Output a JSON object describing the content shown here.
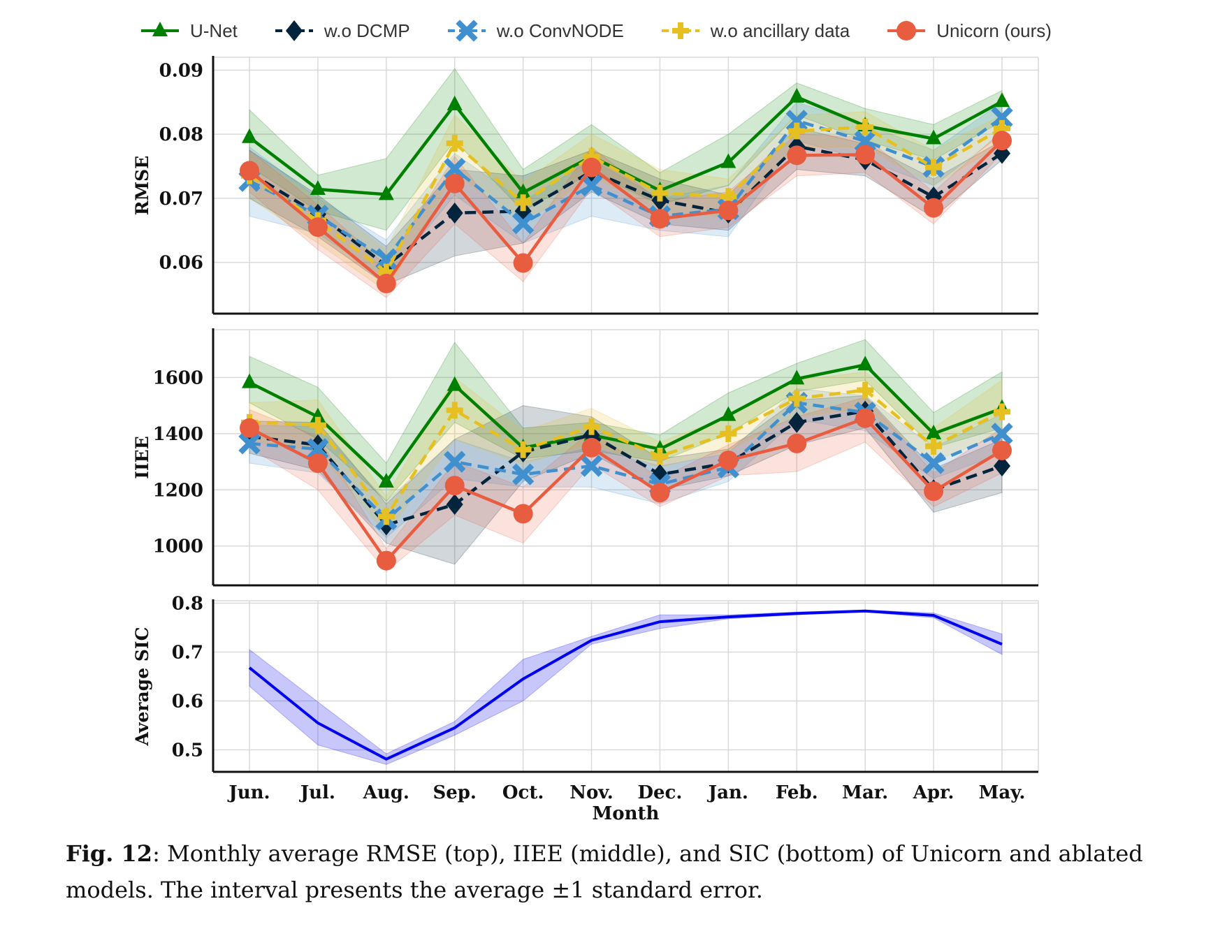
{
  "legend": [
    {
      "name": "U-Net",
      "color": "#008000",
      "marker": "triangle-up",
      "dash": "solid"
    },
    {
      "name": "w.o DCMP",
      "color": "#03243d",
      "marker": "diamond",
      "dash": "dashed"
    },
    {
      "name": "w.o ConvNODE",
      "color": "#4090d0",
      "marker": "x-filled",
      "dash": "dashed"
    },
    {
      "name": "w.o ancillary data",
      "color": "#e6bf20",
      "marker": "plus-filled",
      "dash": "dashed"
    },
    {
      "name": "Unicorn (ours)",
      "color": "#e85c40",
      "marker": "circle",
      "dash": "solid"
    }
  ],
  "caption": {
    "label": "Fig. 12",
    "text": ": Monthly average RMSE (top), IIEE (middle), and SIC (bottom) of Unicorn and ablated models. The interval presents the average ±1 standard error."
  },
  "chart_data": [
    {
      "type": "line",
      "title": "",
      "xlabel": "",
      "ylabel": "RMSE",
      "categories": [
        "Jun.",
        "Jul.",
        "Aug.",
        "Sep.",
        "Oct.",
        "Nov.",
        "Dec.",
        "Jan.",
        "Feb.",
        "Mar.",
        "Apr.",
        "May."
      ],
      "ylim": [
        0.052,
        0.092
      ],
      "yticks": [
        0.06,
        0.07,
        0.08,
        0.09
      ],
      "ytick_labels": [
        "0.06",
        "0.07",
        "0.08",
        "0.09"
      ],
      "grid": true,
      "series": [
        {
          "name": "U-Net",
          "values": [
            0.0795,
            0.0714,
            0.0706,
            0.0846,
            0.0709,
            0.0765,
            0.0712,
            0.0756,
            0.0858,
            0.0813,
            0.0793,
            0.0851
          ],
          "lower": [
            0.075,
            0.068,
            0.065,
            0.079,
            0.068,
            0.074,
            0.069,
            0.072,
            0.083,
            0.079,
            0.076,
            0.082
          ],
          "upper": [
            0.0838,
            0.0736,
            0.0762,
            0.0902,
            0.0745,
            0.0815,
            0.074,
            0.08,
            0.088,
            0.084,
            0.0815,
            0.0868
          ]
        },
        {
          "name": "w.o DCMP",
          "values": [
            0.074,
            0.0675,
            0.0595,
            0.0677,
            0.068,
            0.0742,
            0.0697,
            0.0677,
            0.0781,
            0.076,
            0.0702,
            0.077
          ],
          "lower": [
            0.07,
            0.064,
            0.0565,
            0.061,
            0.063,
            0.071,
            0.066,
            0.065,
            0.0745,
            0.0735,
            0.067,
            0.076
          ],
          "upper": [
            0.0775,
            0.0705,
            0.0625,
            0.0745,
            0.0735,
            0.0775,
            0.073,
            0.0705,
            0.081,
            0.0785,
            0.073,
            0.079
          ]
        },
        {
          "name": "w.o ConvNODE",
          "values": [
            0.0727,
            0.0673,
            0.0605,
            0.0746,
            0.0661,
            0.072,
            0.0672,
            0.0683,
            0.0821,
            0.0789,
            0.0749,
            0.0826
          ],
          "lower": [
            0.0672,
            0.0645,
            0.0575,
            0.0705,
            0.063,
            0.0672,
            0.065,
            0.064,
            0.079,
            0.076,
            0.072,
            0.08
          ],
          "upper": [
            0.078,
            0.07,
            0.0635,
            0.077,
            0.0695,
            0.076,
            0.07,
            0.072,
            0.085,
            0.0815,
            0.0775,
            0.085
          ]
        },
        {
          "name": "w.o ancillary data",
          "values": [
            0.0735,
            0.0665,
            0.0585,
            0.0786,
            0.0693,
            0.0765,
            0.0708,
            0.0703,
            0.0805,
            0.0811,
            0.0748,
            0.0809
          ],
          "lower": [
            0.07,
            0.063,
            0.0555,
            0.074,
            0.066,
            0.0735,
            0.068,
            0.067,
            0.078,
            0.078,
            0.072,
            0.0785
          ],
          "upper": [
            0.077,
            0.07,
            0.062,
            0.083,
            0.0725,
            0.08,
            0.0745,
            0.073,
            0.083,
            0.0835,
            0.0775,
            0.083
          ]
        },
        {
          "name": "Unicorn (ours)",
          "values": [
            0.0743,
            0.0655,
            0.0567,
            0.0723,
            0.0599,
            0.0748,
            0.0668,
            0.0681,
            0.0767,
            0.0768,
            0.0685,
            0.079
          ],
          "lower": [
            0.071,
            0.062,
            0.0545,
            0.066,
            0.057,
            0.0715,
            0.064,
            0.0655,
            0.0735,
            0.074,
            0.066,
            0.077
          ],
          "upper": [
            0.0775,
            0.069,
            0.0595,
            0.0765,
            0.063,
            0.078,
            0.0695,
            0.071,
            0.08,
            0.0795,
            0.071,
            0.0805
          ]
        }
      ]
    },
    {
      "type": "line",
      "title": "",
      "xlabel": "",
      "ylabel": "IIEE",
      "categories": [
        "Jun.",
        "Jul.",
        "Aug.",
        "Sep.",
        "Oct.",
        "Nov.",
        "Dec.",
        "Jan.",
        "Feb.",
        "Mar.",
        "Apr.",
        "May."
      ],
      "ylim": [
        860,
        1770
      ],
      "yticks": [
        1000,
        1200,
        1400,
        1600
      ],
      "ytick_labels": [
        "1000",
        "1200",
        "1400",
        "1600"
      ],
      "grid": true,
      "series": [
        {
          "name": "U-Net",
          "values": [
            1582,
            1460,
            1228,
            1572,
            1350,
            1395,
            1345,
            1465,
            1595,
            1645,
            1400,
            1490
          ],
          "lower": [
            1510,
            1380,
            1160,
            1440,
            1310,
            1340,
            1300,
            1400,
            1550,
            1590,
            1350,
            1420
          ],
          "upper": [
            1675,
            1565,
            1295,
            1725,
            1420,
            1440,
            1395,
            1545,
            1650,
            1735,
            1475,
            1620
          ]
        },
        {
          "name": "w.o DCMP",
          "values": [
            1390,
            1360,
            1075,
            1148,
            1335,
            1395,
            1255,
            1295,
            1440,
            1480,
            1200,
            1285
          ],
          "lower": [
            1330,
            1270,
            1010,
            935,
            1230,
            1330,
            1200,
            1250,
            1360,
            1420,
            1120,
            1190
          ],
          "upper": [
            1445,
            1440,
            1150,
            1380,
            1500,
            1460,
            1310,
            1345,
            1520,
            1535,
            1275,
            1380
          ]
        },
        {
          "name": "w.o ConvNODE",
          "values": [
            1365,
            1345,
            1095,
            1300,
            1255,
            1285,
            1220,
            1280,
            1510,
            1475,
            1295,
            1400
          ],
          "lower": [
            1295,
            1260,
            1030,
            1240,
            1210,
            1210,
            1150,
            1230,
            1450,
            1410,
            1240,
            1330
          ],
          "upper": [
            1430,
            1425,
            1160,
            1380,
            1300,
            1350,
            1285,
            1330,
            1560,
            1535,
            1350,
            1470
          ]
        },
        {
          "name": "w.o ancillary data",
          "values": [
            1440,
            1430,
            1105,
            1483,
            1343,
            1425,
            1320,
            1400,
            1525,
            1555,
            1355,
            1478
          ],
          "lower": [
            1370,
            1340,
            1040,
            1380,
            1290,
            1370,
            1280,
            1340,
            1460,
            1490,
            1300,
            1400
          ],
          "upper": [
            1510,
            1520,
            1175,
            1600,
            1410,
            1490,
            1370,
            1460,
            1590,
            1620,
            1420,
            1590
          ]
        },
        {
          "name": "Unicorn (ours)",
          "values": [
            1420,
            1295,
            948,
            1215,
            1115,
            1350,
            1190,
            1305,
            1365,
            1455,
            1195,
            1340
          ],
          "lower": [
            1350,
            1200,
            910,
            1110,
            1010,
            1290,
            1140,
            1250,
            1265,
            1370,
            1140,
            1260
          ],
          "upper": [
            1485,
            1390,
            990,
            1300,
            1210,
            1410,
            1240,
            1360,
            1460,
            1530,
            1260,
            1420
          ]
        }
      ]
    },
    {
      "type": "line",
      "title": "",
      "xlabel": "Month",
      "ylabel": "Average SIC",
      "categories": [
        "Jun.",
        "Jul.",
        "Aug.",
        "Sep.",
        "Oct.",
        "Nov.",
        "Dec.",
        "Jan.",
        "Feb.",
        "Mar.",
        "Apr.",
        "May."
      ],
      "ylim": [
        0.455,
        0.805
      ],
      "yticks": [
        0.5,
        0.6,
        0.7,
        0.8
      ],
      "ytick_labels": [
        "0.5",
        "0.6",
        "0.7",
        "0.8"
      ],
      "grid": true,
      "series": [
        {
          "name": "Average SIC",
          "color": "#0000ee",
          "values": [
            0.668,
            0.555,
            0.481,
            0.545,
            0.645,
            0.724,
            0.762,
            0.772,
            0.779,
            0.784,
            0.775,
            0.716
          ],
          "lower": [
            0.63,
            0.51,
            0.47,
            0.53,
            0.6,
            0.716,
            0.748,
            0.768,
            0.776,
            0.782,
            0.77,
            0.695
          ],
          "upper": [
            0.705,
            0.598,
            0.492,
            0.558,
            0.685,
            0.732,
            0.776,
            0.776,
            0.782,
            0.786,
            0.78,
            0.737
          ]
        }
      ]
    }
  ]
}
